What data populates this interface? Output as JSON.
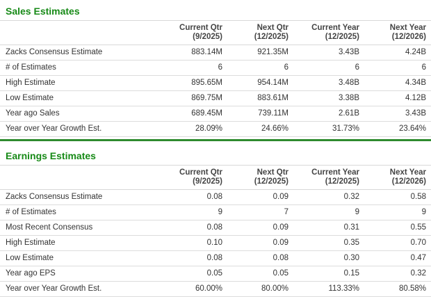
{
  "colors": {
    "title_green": "#178a17",
    "divider_green": "#2e8b2e",
    "row_border": "#dcdcdc",
    "text": "#333333"
  },
  "sales": {
    "title": "Sales Estimates",
    "columns": [
      {
        "line1": "Current Qtr",
        "line2": "(9/2025)"
      },
      {
        "line1": "Next Qtr",
        "line2": "(12/2025)"
      },
      {
        "line1": "Current Year",
        "line2": "(12/2025)"
      },
      {
        "line1": "Next Year",
        "line2": "(12/2026)"
      }
    ],
    "rows": [
      {
        "label": "Zacks Consensus Estimate",
        "values": [
          "883.14M",
          "921.35M",
          "3.43B",
          "4.24B"
        ]
      },
      {
        "label": "# of Estimates",
        "values": [
          "6",
          "6",
          "6",
          "6"
        ]
      },
      {
        "label": "High Estimate",
        "values": [
          "895.65M",
          "954.14M",
          "3.48B",
          "4.34B"
        ]
      },
      {
        "label": "Low Estimate",
        "values": [
          "869.75M",
          "883.61M",
          "3.38B",
          "4.12B"
        ]
      },
      {
        "label": "Year ago Sales",
        "values": [
          "689.45M",
          "739.11M",
          "2.61B",
          "3.43B"
        ]
      },
      {
        "label": "Year over Year Growth Est.",
        "values": [
          "28.09%",
          "24.66%",
          "31.73%",
          "23.64%"
        ]
      }
    ]
  },
  "earnings": {
    "title": "Earnings Estimates",
    "columns": [
      {
        "line1": "Current Qtr",
        "line2": "(9/2025)"
      },
      {
        "line1": "Next Qtr",
        "line2": "(12/2025)"
      },
      {
        "line1": "Current Year",
        "line2": "(12/2025)"
      },
      {
        "line1": "Next Year",
        "line2": "(12/2026)"
      }
    ],
    "rows": [
      {
        "label": "Zacks Consensus Estimate",
        "values": [
          "0.08",
          "0.09",
          "0.32",
          "0.58"
        ]
      },
      {
        "label": "# of Estimates",
        "values": [
          "9",
          "7",
          "9",
          "9"
        ]
      },
      {
        "label": "Most Recent Consensus",
        "values": [
          "0.08",
          "0.09",
          "0.31",
          "0.55"
        ]
      },
      {
        "label": "High Estimate",
        "values": [
          "0.10",
          "0.09",
          "0.35",
          "0.70"
        ]
      },
      {
        "label": "Low Estimate",
        "values": [
          "0.08",
          "0.08",
          "0.30",
          "0.47"
        ]
      },
      {
        "label": "Year ago EPS",
        "values": [
          "0.05",
          "0.05",
          "0.15",
          "0.32"
        ]
      },
      {
        "label": "Year over Year Growth Est.",
        "values": [
          "60.00%",
          "80.00%",
          "113.33%",
          "80.58%"
        ]
      }
    ]
  }
}
